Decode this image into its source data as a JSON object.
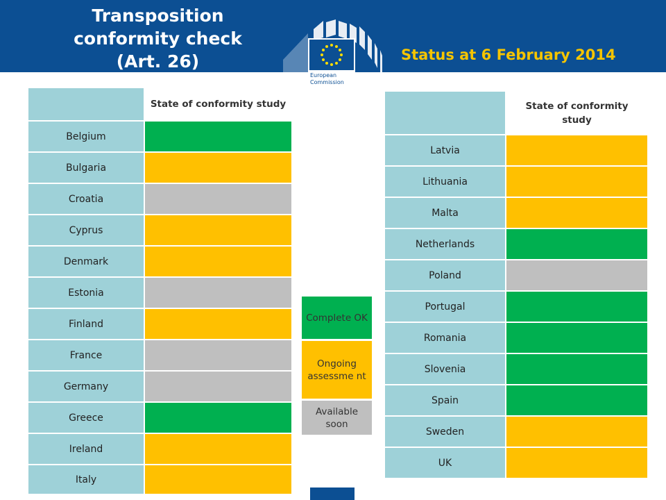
{
  "header": {
    "title_lines": [
      "Transposition",
      "conformity check",
      "(Art. 26)"
    ],
    "status": "Status at 6 February 2014",
    "colors": {
      "band": "#0c4f93",
      "title": "#ffffff",
      "status": "#f5c400"
    }
  },
  "logo": {
    "icon": "european-commission-logo",
    "text_lines": [
      "European",
      "Commission"
    ]
  },
  "colors": {
    "complete": "#00b050",
    "ongoing": "#ffc000",
    "available_soon": "#bfbfbf",
    "country_cell": "#9ed1d8"
  },
  "left_table": {
    "column_header": "State of conformity study",
    "rows": [
      {
        "country": "Belgium",
        "status": "complete"
      },
      {
        "country": "Bulgaria",
        "status": "ongoing"
      },
      {
        "country": "Croatia",
        "status": "available_soon"
      },
      {
        "country": "Cyprus",
        "status": "ongoing"
      },
      {
        "country": "Denmark",
        "status": "ongoing"
      },
      {
        "country": "Estonia",
        "status": "available_soon"
      },
      {
        "country": "Finland",
        "status": "ongoing"
      },
      {
        "country": "France",
        "status": "available_soon"
      },
      {
        "country": "Germany",
        "status": "available_soon"
      },
      {
        "country": "Greece",
        "status": "complete"
      },
      {
        "country": "Ireland",
        "status": "ongoing"
      },
      {
        "country": "Italy",
        "status": "ongoing"
      }
    ]
  },
  "right_table": {
    "column_header": "State of conformity study",
    "rows": [
      {
        "country": "Latvia",
        "status": "ongoing"
      },
      {
        "country": "Lithuania",
        "status": "ongoing"
      },
      {
        "country": "Malta",
        "status": "ongoing"
      },
      {
        "country": "Netherlands",
        "status": "complete"
      },
      {
        "country": "Poland",
        "status": "available_soon"
      },
      {
        "country": "Portugal",
        "status": "complete"
      },
      {
        "country": "Romania",
        "status": "complete"
      },
      {
        "country": "Slovenia",
        "status": "complete"
      },
      {
        "country": "Spain",
        "status": "complete"
      },
      {
        "country": "Sweden",
        "status": "ongoing"
      },
      {
        "country": "UK",
        "status": "ongoing"
      }
    ]
  },
  "legend": {
    "complete": "Complete OK",
    "ongoing": "Ongoing assessme nt",
    "available_soon": "Available soon"
  }
}
